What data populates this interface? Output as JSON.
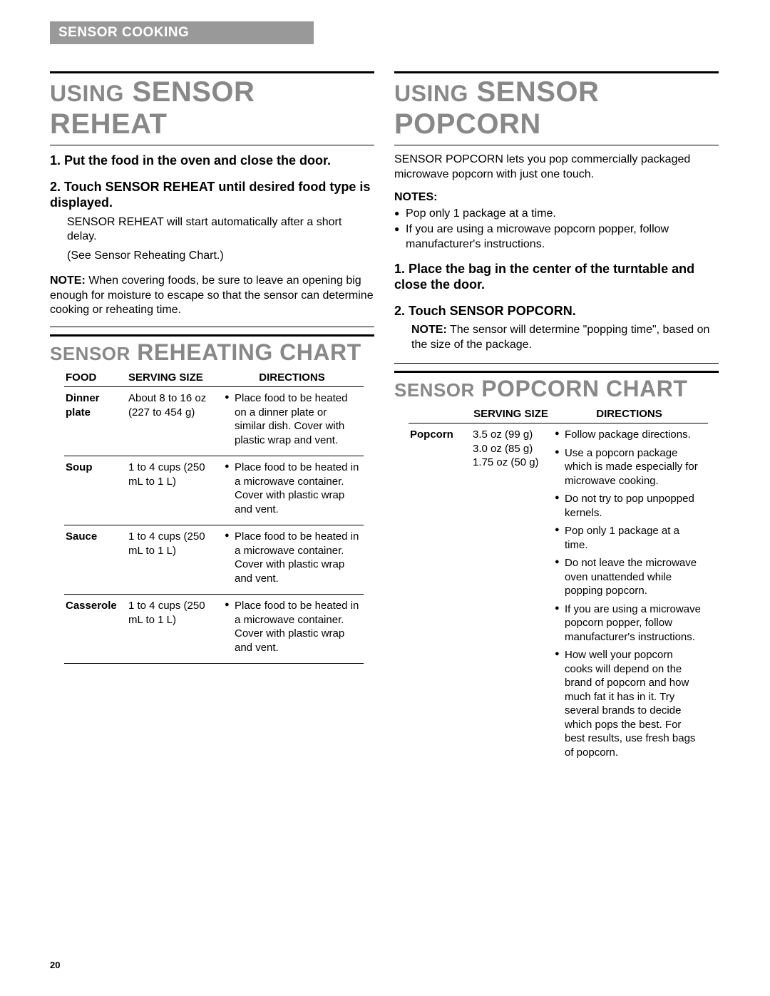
{
  "page_number": "20",
  "section_tag": "SENSOR COOKING",
  "left": {
    "heading_small": "USING",
    "heading_big": "SENSOR REHEAT",
    "steps": [
      {
        "title": "1. Put the food in the oven and close the door.",
        "body": []
      },
      {
        "title": "2. Touch SENSOR REHEAT until desired food type is displayed.",
        "body": [
          "SENSOR REHEAT will start automatically after a short delay.",
          "(See Sensor Reheating Chart.)"
        ]
      }
    ],
    "note_label": "NOTE:",
    "note_text": " When covering foods, be sure to leave an opening big enough for moisture to escape so that the sensor can determine cooking or reheating time.",
    "chart_heading_small": "SENSOR",
    "chart_heading_big": "REHEATING CHART",
    "chart_headers": {
      "food": "FOOD",
      "serving": "SERVING SIZE",
      "directions": "DIRECTIONS"
    },
    "chart_rows": [
      {
        "food": "Dinner plate",
        "serving": "About 8 to 16 oz (227 to 454 g)",
        "directions": [
          "Place food to be heated on a dinner plate or similar dish. Cover with plastic wrap and vent."
        ]
      },
      {
        "food": "Soup",
        "serving": "1 to 4 cups (250 mL to 1 L)",
        "directions": [
          "Place food to be heated in a microwave container. Cover with plastic wrap and vent."
        ]
      },
      {
        "food": "Sauce",
        "serving": "1 to 4 cups (250 mL to 1 L)",
        "directions": [
          "Place food to be heated in a microwave container. Cover with plastic wrap and vent."
        ]
      },
      {
        "food": "Casserole",
        "serving": "1 to 4 cups (250 mL to 1 L)",
        "directions": [
          "Place food to be heated in a microwave container. Cover with plastic wrap and vent."
        ]
      }
    ]
  },
  "right": {
    "heading_small": "USING",
    "heading_big": "SENSOR POPCORN",
    "intro": "SENSOR POPCORN lets you pop commercially packaged microwave popcorn with just one touch.",
    "notes_label": "NOTES:",
    "notes": [
      "Pop only 1 package at a time.",
      "If you are using a microwave popcorn popper, follow manufacturer's instructions."
    ],
    "steps": [
      {
        "title": "1. Place the bag in the center of the turntable and close the door.",
        "body": []
      },
      {
        "title": "2. Touch SENSOR POPCORN.",
        "body_note_label": "NOTE:",
        "body_note_text": " The sensor will determine \"popping time\", based on the size of the package."
      }
    ],
    "chart_heading_small": "SENSOR",
    "chart_heading_big": "POPCORN CHART",
    "chart_headers": {
      "serving": "SERVING SIZE",
      "directions": "DIRECTIONS"
    },
    "chart_row": {
      "food": "Popcorn",
      "serving": "3.5 oz (99 g)\n3.0 oz (85 g)\n1.75 oz (50 g)",
      "directions": [
        "Follow package directions.",
        "Use a popcorn package which is made especially for microwave cooking.",
        "Do not try to pop unpopped kernels.",
        "Pop only 1 package at a time.",
        "Do not leave the microwave oven unattended while popping popcorn.",
        "If you are using a microwave popcorn popper, follow manufacturer's instructions.",
        "How well your popcorn cooks will depend on the brand of popcorn and how much fat it has in it. Try several brands to decide which pops the best. For best results, use fresh bags of popcorn."
      ]
    }
  }
}
